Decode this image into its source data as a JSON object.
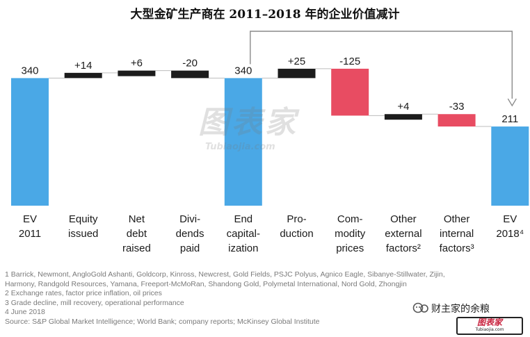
{
  "title": "大型金矿生产商在 2011–2018 年的企业价值减计",
  "chart_data": {
    "type": "waterfall",
    "colors": {
      "total": "#4aa8e6",
      "positive_change": "#1c1c1c",
      "commodity": "#e84c62"
    },
    "bars": [
      {
        "label_lines": [
          "EV",
          "2011"
        ],
        "value_label": "340",
        "kind": "total",
        "base": 0,
        "top": 340,
        "color_key": "total"
      },
      {
        "label_lines": [
          "Equity",
          "issued"
        ],
        "value_label": "+14",
        "kind": "delta",
        "base": 340,
        "top": 354,
        "color_key": "positive_change"
      },
      {
        "label_lines": [
          "Net",
          "debt",
          "raised"
        ],
        "value_label": "+6",
        "kind": "delta",
        "base": 354,
        "top": 360,
        "color_key": "positive_change"
      },
      {
        "label_lines": [
          "Divi-",
          "dends",
          "paid"
        ],
        "value_label": "-20",
        "kind": "delta",
        "base": 340,
        "top": 360,
        "color_key": "positive_change"
      },
      {
        "label_lines": [
          "End",
          "capital-",
          "ization"
        ],
        "value_label": "340",
        "kind": "total",
        "base": 0,
        "top": 340,
        "color_key": "total"
      },
      {
        "label_lines": [
          "Pro-",
          "duction"
        ],
        "value_label": "+25",
        "kind": "delta",
        "base": 340,
        "top": 365,
        "color_key": "positive_change"
      },
      {
        "label_lines": [
          "Com-",
          "modity",
          "prices"
        ],
        "value_label": "-125",
        "kind": "delta",
        "base": 240,
        "top": 365,
        "color_key": "commodity"
      },
      {
        "label_lines": [
          "Other",
          "external",
          "factors²"
        ],
        "value_label": "+4",
        "kind": "delta",
        "base": 240,
        "top": 244,
        "color_key": "positive_change"
      },
      {
        "label_lines": [
          "Other",
          "internal",
          "factors³"
        ],
        "value_label": "-33",
        "kind": "delta",
        "base": 211,
        "top": 244,
        "color_key": "commodity"
      },
      {
        "label_lines": [
          "EV",
          "2018⁴"
        ],
        "value_label": "211",
        "kind": "total",
        "base": 0,
        "top": 211,
        "color_key": "total"
      }
    ],
    "ylim": [
      0,
      400
    ]
  },
  "footnotes": [
    "1 Barrick, Newmont, AngloGold Ashanti, Goldcorp, Kinross, Newcrest, Gold Fields, PSJC Polyus, Agnico Eagle, Sibanye-Stillwater, Zijin,",
    "   Harmony, Randgold Resources, Yamana, Freeport-McMoRan, Shandong Gold, Polymetal International, Nord Gold, Zhongjin",
    "2 Exchange rates, factor price inflation, oil prices",
    "3 Grade decline, mill recovery, operational performance",
    "4 June 2018",
    "Source: S&P Global Market Intelligence; World Bank; company reports; McKinsey Global Institute"
  ],
  "watermark": {
    "text": "图表家",
    "sub": "Tubiaojia.com"
  },
  "brand": {
    "account": "财主家的余粮",
    "logo": "图表家",
    "logo_sub": "Tubiaojia.com"
  }
}
